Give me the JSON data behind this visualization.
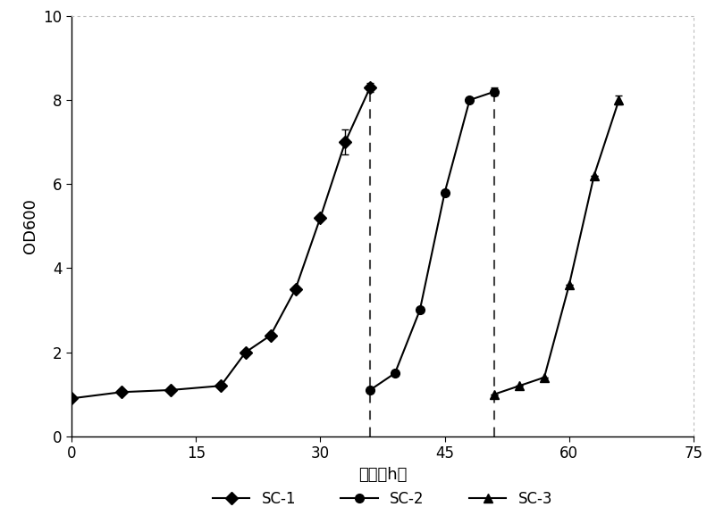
{
  "sc1_x": [
    0,
    6,
    12,
    18,
    21,
    24,
    27,
    30,
    33,
    36
  ],
  "sc1_y": [
    0.9,
    1.05,
    1.1,
    1.2,
    2.0,
    2.4,
    3.5,
    5.2,
    7.0,
    8.3
  ],
  "sc1_yerr": [
    0.0,
    0.0,
    0.0,
    0.0,
    0.0,
    0.0,
    0.0,
    0.0,
    0.3,
    0.1
  ],
  "sc2_x": [
    36,
    39,
    42,
    45,
    48,
    51
  ],
  "sc2_y": [
    1.1,
    1.5,
    3.0,
    5.8,
    8.0,
    8.2
  ],
  "sc2_yerr": [
    0.0,
    0.0,
    0.0,
    0.0,
    0.0,
    0.1
  ],
  "sc3_x": [
    51,
    54,
    57,
    60,
    63,
    66
  ],
  "sc3_y": [
    1.0,
    1.2,
    1.4,
    3.6,
    6.2,
    8.0
  ],
  "sc3_yerr": [
    0.0,
    0.0,
    0.0,
    0.0,
    0.0,
    0.1
  ],
  "dashed_line1_x": 36,
  "dashed_line2_x": 51,
  "dashed_line_ymax": 8.3,
  "xlabel": "时间（h）",
  "ylabel": "OD600",
  "xlim": [
    0,
    75
  ],
  "ylim": [
    0,
    10
  ],
  "xticks": [
    0,
    15,
    30,
    45,
    60,
    75
  ],
  "yticks": [
    0,
    2,
    4,
    6,
    8,
    10
  ],
  "line_color": "#000000",
  "bg_color": "#ffffff",
  "legend_labels": [
    "SC-1",
    "SC-2",
    "SC-3"
  ],
  "figsize": [
    8.0,
    5.96
  ],
  "dpi": 100,
  "markersize": 7,
  "linewidth": 1.5,
  "border_dot_color": "#aaaaaa",
  "dashed_line_color": "#444444"
}
